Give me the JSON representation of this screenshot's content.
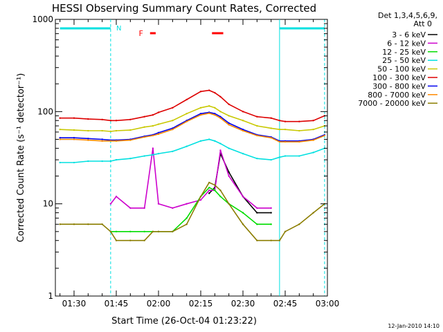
{
  "chart_data": {
    "type": "line",
    "title": "HESSI Observing Summary Count Rates, Corrected",
    "xlabel": "Start Time (26-Oct-04 01:23:22)",
    "ylabel": "Corrected Count Rate (s⁻¹ detector⁻¹)",
    "yscale": "log",
    "ylim": [
      1,
      1000
    ],
    "xlim": [
      "01:23:22",
      "03:00:00"
    ],
    "xticks": [
      "01:30",
      "01:45",
      "02:00",
      "02:15",
      "02:30",
      "02:45",
      "03:00"
    ],
    "yticks": [
      "1",
      "10",
      "100",
      "1000"
    ],
    "grid": false,
    "legend": {
      "header_line1": "Det 1,3,4,5,6,9,",
      "header_line2": "Att 0",
      "placement": "right-outside"
    },
    "x": [
      "01:25",
      "01:30",
      "01:35",
      "01:40",
      "01:43",
      "01:45",
      "01:50",
      "01:55",
      "01:58",
      "02:00",
      "02:05",
      "02:10",
      "02:15",
      "02:18",
      "02:20",
      "02:22",
      "02:25",
      "02:30",
      "02:35",
      "02:40",
      "02:43",
      "02:45",
      "02:50",
      "02:55",
      "02:59"
    ],
    "series": [
      {
        "name": "3 - 6 keV",
        "color": "#000000",
        "values": [
          null,
          null,
          null,
          null,
          null,
          null,
          null,
          null,
          null,
          null,
          null,
          null,
          null,
          13,
          15,
          35,
          22,
          12,
          8,
          8,
          null,
          null,
          null,
          null,
          null
        ]
      },
      {
        "name": "6 - 12 keV",
        "color": "#cc00cc",
        "values": [
          null,
          null,
          null,
          null,
          10,
          12,
          9,
          9,
          40,
          10,
          9,
          10,
          11,
          14,
          14,
          38,
          20,
          12,
          9,
          9,
          null,
          null,
          null,
          null,
          null
        ]
      },
      {
        "name": "12 - 25 keV",
        "color": "#00dd00",
        "values": [
          null,
          null,
          null,
          null,
          5,
          5,
          5,
          5,
          5,
          5,
          5,
          7,
          12,
          15,
          14,
          12,
          10,
          8,
          6,
          6,
          null,
          null,
          null,
          null,
          null
        ]
      },
      {
        "name": "25 - 50 keV",
        "color": "#00e0e0",
        "values": [
          28,
          28,
          29,
          29,
          29,
          30,
          31,
          33,
          34,
          35,
          37,
          42,
          48,
          50,
          48,
          45,
          40,
          35,
          31,
          30,
          32,
          33,
          33,
          36,
          40
        ]
      },
      {
        "name": "50 - 100 keV",
        "color": "#c8c800",
        "values": [
          64,
          63,
          62,
          62,
          61,
          62,
          63,
          68,
          70,
          73,
          80,
          95,
          110,
          115,
          110,
          100,
          90,
          80,
          70,
          66,
          64,
          64,
          62,
          64,
          70
        ]
      },
      {
        "name": "100 - 300 keV",
        "color": "#dd0000",
        "values": [
          85,
          85,
          83,
          82,
          80,
          80,
          82,
          88,
          92,
          98,
          110,
          135,
          165,
          170,
          160,
          145,
          120,
          100,
          88,
          85,
          80,
          78,
          78,
          80,
          90
        ]
      },
      {
        "name": "300 - 800 keV",
        "color": "#0000ee",
        "values": [
          52,
          52,
          51,
          50,
          49,
          49,
          50,
          54,
          56,
          59,
          66,
          80,
          95,
          98,
          95,
          88,
          75,
          64,
          56,
          53,
          48,
          48,
          48,
          50,
          56
        ]
      },
      {
        "name": "800 - 7000 keV",
        "color": "#ff8800",
        "values": [
          50,
          50,
          49,
          48,
          48,
          48,
          49,
          53,
          55,
          57,
          64,
          78,
          92,
          96,
          92,
          85,
          72,
          62,
          55,
          52,
          47,
          47,
          47,
          49,
          55
        ]
      },
      {
        "name": "7000 - 20000 keV",
        "color": "#8b7d00",
        "values": [
          6,
          6,
          6,
          6,
          5,
          4,
          4,
          4,
          5,
          5,
          5,
          6,
          12,
          17,
          16,
          14,
          10,
          6,
          4,
          4,
          4,
          5,
          6,
          8,
          10
        ]
      }
    ],
    "annotations": [
      {
        "text": "N",
        "color": "#00e0e0"
      },
      {
        "text": "F",
        "color": "#ff0000"
      }
    ]
  },
  "footer": {
    "timestamp": "12-Jan-2010 14:10"
  }
}
